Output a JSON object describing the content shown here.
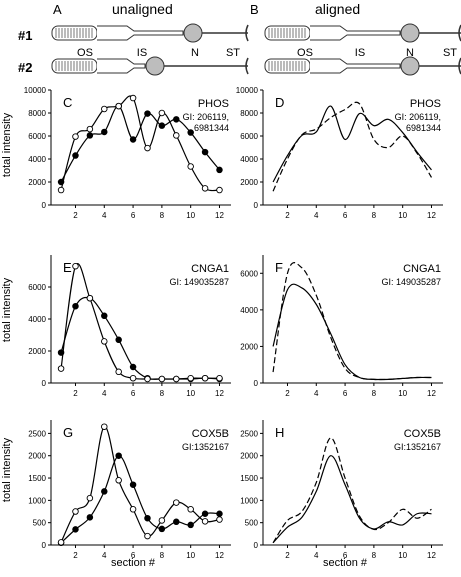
{
  "header": {
    "col_a_letter": "A",
    "col_a_title": "unaligned",
    "col_b_letter": "B",
    "col_b_title": "aligned",
    "row1": "#1",
    "row2": "#2",
    "seg_labels": [
      "OS",
      "IS",
      "N",
      "ST"
    ]
  },
  "axes": {
    "ylabel": "total intensity",
    "xlabel": "section #",
    "xticks": [
      2,
      4,
      6,
      8,
      10,
      12
    ]
  },
  "chart_data": [
    {
      "type": "line",
      "panel": "C",
      "title": "PHOS",
      "subtitle": "GI: 206119,\n6981344",
      "x": [
        1,
        2,
        3,
        4,
        5,
        6,
        7,
        8,
        9,
        10,
        11,
        12
      ],
      "ylim": [
        0,
        10000
      ],
      "yticks": [
        0,
        2000,
        4000,
        6000,
        8000,
        10000
      ],
      "series": [
        {
          "marker": "filled",
          "values": [
            2000,
            4300,
            6050,
            6350,
            8600,
            5700,
            7950,
            6900,
            7450,
            6300,
            4600,
            3050
          ]
        },
        {
          "marker": "open",
          "values": [
            1300,
            5950,
            6600,
            8350,
            8600,
            9300,
            4950,
            8000,
            6050,
            3350,
            1450,
            1300
          ]
        }
      ],
      "grid": false
    },
    {
      "type": "line",
      "panel": "D",
      "title": "PHOS",
      "subtitle": "GI: 206119,\n6981344",
      "x": [
        1,
        2,
        3,
        4,
        5,
        6,
        7,
        8,
        9,
        10,
        11,
        12
      ],
      "ylim": [
        0,
        10000
      ],
      "yticks": [
        0,
        2000,
        4000,
        6000,
        8000,
        10000
      ],
      "series": [
        {
          "style": "solid",
          "values": [
            2000,
            4300,
            6050,
            6350,
            8600,
            5700,
            7950,
            6900,
            7450,
            6300,
            4600,
            3050
          ]
        },
        {
          "style": "dashed",
          "values": [
            1200,
            4000,
            6100,
            6600,
            7600,
            8300,
            8800,
            5700,
            5000,
            6000,
            4500,
            2400
          ]
        }
      ],
      "grid": false
    },
    {
      "type": "line",
      "panel": "E",
      "title": "CNGA1",
      "subtitle": "GI: 149035287",
      "x": [
        1,
        2,
        3,
        4,
        5,
        6,
        7,
        8,
        9,
        10,
        11,
        12
      ],
      "ylim": [
        0,
        8000
      ],
      "yticks": [
        0,
        2000,
        4000,
        6000
      ],
      "series": [
        {
          "marker": "filled",
          "values": [
            1900,
            4800,
            5300,
            4200,
            2700,
            1000,
            300,
            250,
            250,
            250,
            300,
            250
          ]
        },
        {
          "marker": "open",
          "values": [
            900,
            7300,
            5300,
            2600,
            700,
            300,
            250,
            250,
            250,
            300,
            300,
            300
          ]
        }
      ],
      "grid": false
    },
    {
      "type": "line",
      "panel": "F",
      "title": "CNGA1",
      "subtitle": "GI: 149035287",
      "x": [
        1,
        2,
        3,
        4,
        5,
        6,
        7,
        8,
        9,
        10,
        11,
        12
      ],
      "ylim": [
        0,
        7000
      ],
      "yticks": [
        0,
        2000,
        4000,
        6000
      ],
      "series": [
        {
          "style": "solid",
          "values": [
            2000,
            5100,
            5200,
            4300,
            2700,
            1000,
            300,
            200,
            200,
            250,
            300,
            300
          ]
        },
        {
          "style": "dashed",
          "values": [
            600,
            6000,
            6300,
            4800,
            2500,
            800,
            300,
            200,
            200,
            250,
            300,
            300
          ]
        }
      ],
      "grid": false
    },
    {
      "type": "line",
      "panel": "G",
      "title": "COX5B",
      "subtitle": "GI:1352167",
      "x": [
        1,
        2,
        3,
        4,
        5,
        6,
        7,
        8,
        9,
        10,
        11,
        12
      ],
      "ylim": [
        0,
        2800
      ],
      "yticks": [
        0,
        500,
        1000,
        1500,
        2000,
        2500
      ],
      "series": [
        {
          "marker": "filled",
          "values": [
            50,
            350,
            620,
            1200,
            2000,
            1350,
            600,
            360,
            520,
            450,
            700,
            700
          ]
        },
        {
          "marker": "open",
          "values": [
            60,
            750,
            1050,
            2650,
            1450,
            800,
            200,
            550,
            950,
            800,
            530,
            570
          ]
        }
      ],
      "grid": false
    },
    {
      "type": "line",
      "panel": "H",
      "title": "COX5B",
      "subtitle": "GI:1352167",
      "x": [
        1,
        2,
        3,
        4,
        5,
        6,
        7,
        8,
        9,
        10,
        11,
        12
      ],
      "ylim": [
        0,
        2800
      ],
      "yticks": [
        0,
        500,
        1000,
        1500,
        2000,
        2500
      ],
      "series": [
        {
          "style": "solid",
          "values": [
            50,
            400,
            620,
            1200,
            2000,
            1350,
            600,
            360,
            520,
            450,
            700,
            700
          ]
        },
        {
          "style": "dashed",
          "values": [
            50,
            550,
            750,
            1400,
            2400,
            1500,
            650,
            350,
            500,
            800,
            600,
            800
          ]
        }
      ],
      "grid": false
    }
  ]
}
